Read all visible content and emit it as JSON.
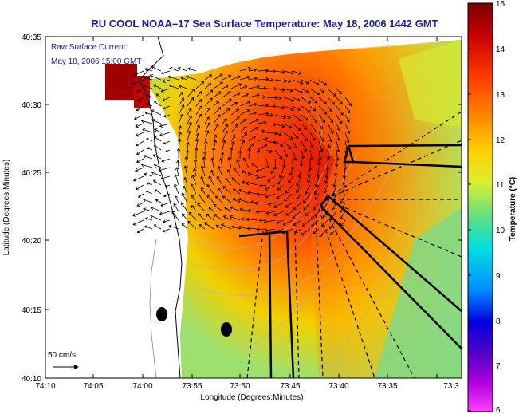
{
  "title": "RU COOL  NOAA–17  Sea Surface Temperature:  May 18, 2006 1442 GMT",
  "current_label_line1": "Raw Surface Current:",
  "current_label_line2": "May 18, 2006 15:00 GMT",
  "scale_label": "50 cm/s",
  "x_axis_label": "Longitude (Degrees:Minutes)",
  "y_axis_label": "Latitude (Degrees:Minutes)",
  "x_ticks": [
    "74:10",
    "74:05",
    "74:00",
    "73:55",
    "73:50",
    "73:45",
    "73:40",
    "73:35",
    "73:3"
  ],
  "y_ticks": [
    "40:35",
    "40:30",
    "40:25",
    "40:20",
    "40:15",
    "40:10"
  ],
  "colorbar": {
    "label": "Temperature (°C)",
    "ticks": [
      "15",
      "14",
      "13",
      "12",
      "11",
      "10",
      "9",
      "8",
      "7",
      "6"
    ],
    "min": 6,
    "max": 15
  },
  "colors": {
    "title": "#1a1aa6",
    "land": "#ffffff"
  }
}
